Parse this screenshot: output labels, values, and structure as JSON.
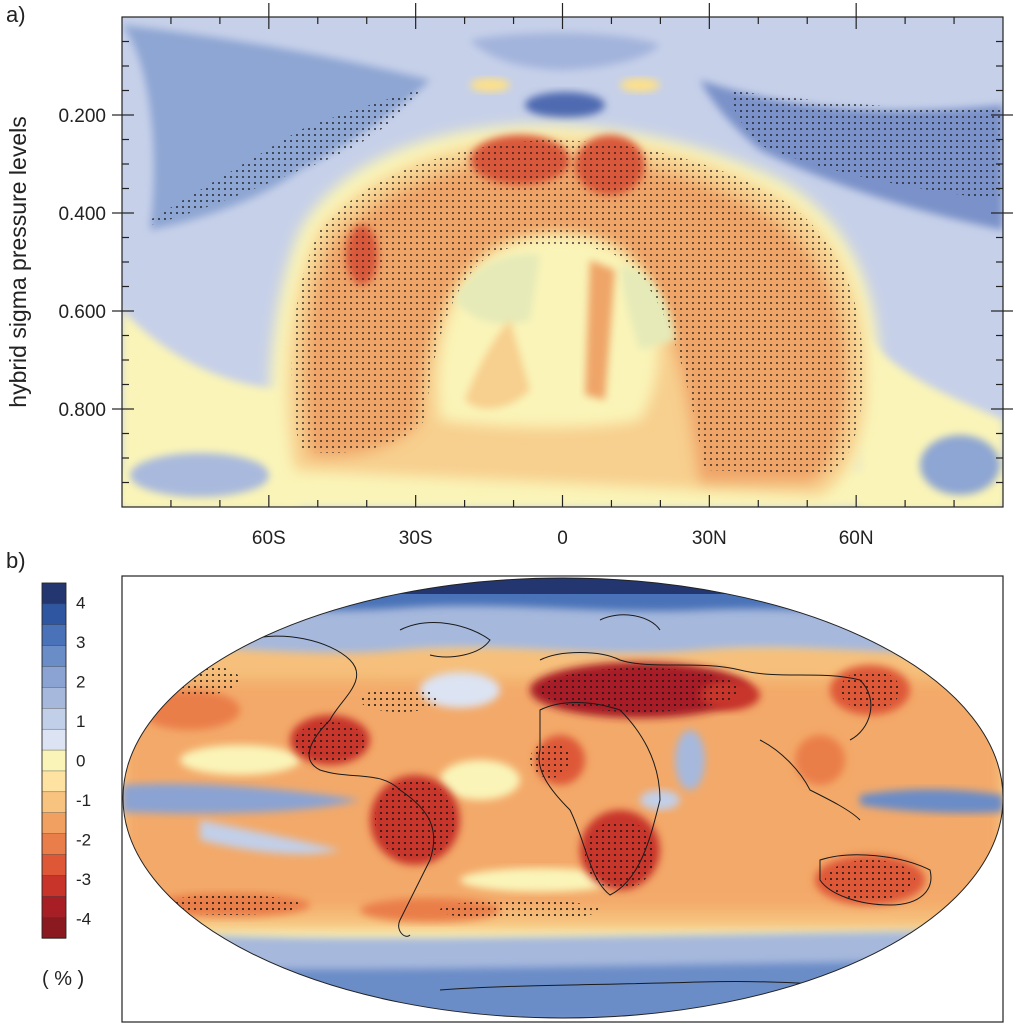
{
  "panels": {
    "a": {
      "tag": "a)"
    },
    "b": {
      "tag": "b)"
    }
  },
  "chart_data": [
    {
      "panel": "a",
      "type": "heatmap",
      "ylabel": "hybrid sigma pressure levels",
      "xlabel": "",
      "title": "",
      "x_ticks": [
        {
          "label": "60S",
          "lat": -60
        },
        {
          "label": "30S",
          "lat": -30
        },
        {
          "label": "0",
          "lat": 0
        },
        {
          "label": "30N",
          "lat": 30
        },
        {
          "label": "60N",
          "lat": 60
        }
      ],
      "y_ticks": [
        {
          "label": "0.200",
          "level": 0.2
        },
        {
          "label": "0.400",
          "level": 0.4
        },
        {
          "label": "0.600",
          "level": 0.6
        },
        {
          "label": "0.800",
          "level": 0.8
        }
      ],
      "xlim": [
        -90,
        90
      ],
      "ylim": [
        0.0,
        1.0
      ],
      "y_inverted": true,
      "stippling": "regions of statistical significance",
      "features": [
        {
          "name": "upper-troposphere-negative-south",
          "lat_range": [
            -80,
            -30
          ],
          "level_range": [
            0.12,
            0.42
          ],
          "value": 1.5
        },
        {
          "name": "upper-troposphere-negative-north",
          "lat_range": [
            35,
            90
          ],
          "level_range": [
            0.12,
            0.38
          ],
          "value": 1.8
        },
        {
          "name": "tropical-tropopause-negative",
          "lat_range": [
            -10,
            10
          ],
          "level_range": [
            0.05,
            0.2
          ],
          "value": 2.0
        },
        {
          "name": "midlatitude-positive-arch",
          "lat_range": [
            -57,
            65
          ],
          "level_range": [
            0.2,
            0.95
          ],
          "value": -2.0
        },
        {
          "name": "equatorial-upper-positive",
          "lat_range": [
            -15,
            12
          ],
          "level_range": [
            0.22,
            0.32
          ],
          "value": -3.0
        }
      ]
    },
    {
      "panel": "b",
      "type": "heatmap",
      "projection": "Robinson",
      "title": "",
      "colorbar": {
        "unit": "( % )",
        "ticks": [
          "4",
          "3",
          "2",
          "1",
          "0",
          "-1",
          "-2",
          "-3",
          "-4"
        ],
        "levels": [
          4.5,
          4,
          3.5,
          3,
          2.5,
          2,
          1.5,
          1,
          0.5,
          0,
          -0.5,
          -1,
          -1.5,
          -2,
          -2.5,
          -3,
          -3.5,
          -4,
          -4.5
        ],
        "colors": [
          "#23366f",
          "#2f56a0",
          "#4a72b8",
          "#6a8cc7",
          "#8aa3d3",
          "#a6b8dc",
          "#c2cfe8",
          "#dce3f2",
          "#faf4b8",
          "#fde2a1",
          "#f8c27f",
          "#f2a062",
          "#ea7e4a",
          "#de5838",
          "#c8342a",
          "#a71f25",
          "#8a1a1f"
        ]
      },
      "stippling": "regions of statistical significance",
      "features": [
        {
          "name": "north-africa-arabia",
          "value": -4.0
        },
        {
          "name": "central-america",
          "value": -3.5
        },
        {
          "name": "amazon",
          "value": -3.5
        },
        {
          "name": "southern-africa",
          "value": -3.5
        },
        {
          "name": "australia",
          "value": -3.0
        },
        {
          "name": "arctic",
          "value": 4.0
        },
        {
          "name": "equatorial-pacific",
          "value": 2.0
        },
        {
          "name": "southern-ocean",
          "value": 1.5
        }
      ]
    }
  ]
}
